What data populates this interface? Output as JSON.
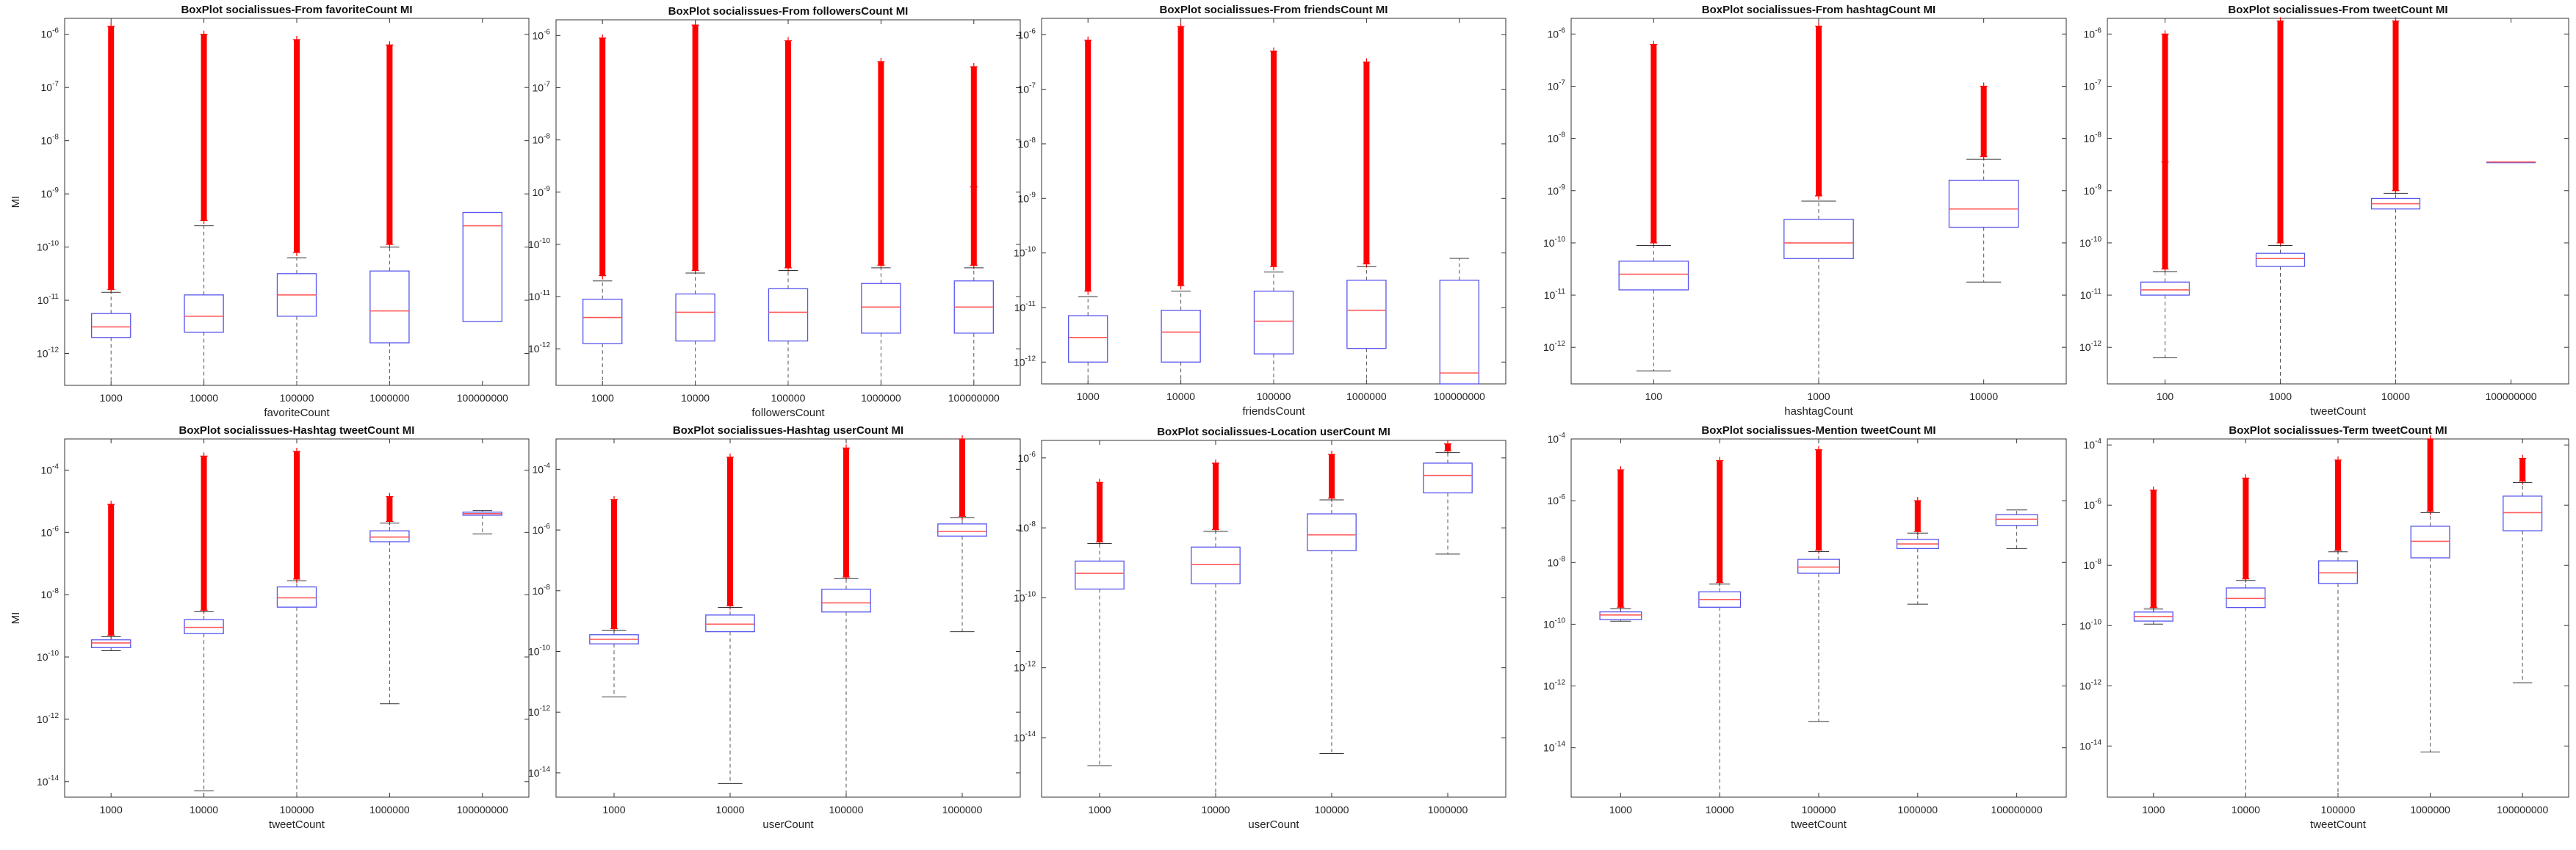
{
  "figure": {
    "chart_data": [
      {
        "type": "boxplot",
        "title": "BoxPlot socialissues-From favoriteCount MI",
        "xlabel": "favoriteCount",
        "ylabel": "MI",
        "yscale": "log",
        "ylim_exp": [
          -12.6,
          -5.7
        ],
        "ytick_exp": [
          -12,
          -11,
          -10,
          -9,
          -8,
          -7,
          -6
        ],
        "categories": [
          "1000",
          "10000",
          "100000",
          "1000000",
          "100000000"
        ],
        "boxes": [
          {
            "wmin": -12.6,
            "q1": -11.7,
            "med": -11.5,
            "q3": -11.25,
            "wmax": -10.85,
            "out": [
              -10.8,
              -5.85
            ]
          },
          {
            "wmin": -12.6,
            "q1": -11.6,
            "med": -11.3,
            "q3": -10.9,
            "wmax": -9.6,
            "out": [
              -9.5,
              -6.0
            ]
          },
          {
            "wmin": -12.6,
            "q1": -11.3,
            "med": -10.9,
            "q3": -10.5,
            "wmax": -10.2,
            "out": [
              -10.1,
              -6.1
            ]
          },
          {
            "wmin": -12.6,
            "q1": -11.8,
            "med": -11.2,
            "q3": -10.45,
            "wmax": -10.0,
            "out": [
              -9.95,
              -6.2
            ]
          },
          {
            "wmin": -11.4,
            "q1": -11.4,
            "med": -9.6,
            "q3": -9.35,
            "wmax": -9.35,
            "out": []
          }
        ]
      },
      {
        "type": "boxplot",
        "title": "BoxPlot socialissues-From followersCount MI",
        "xlabel": "followersCount",
        "ylabel": "",
        "yscale": "log",
        "ylim_exp": [
          -12.7,
          -5.7
        ],
        "ytick_exp": [
          -12,
          -11,
          -10,
          -9,
          -8,
          -7,
          -6
        ],
        "categories": [
          "1000",
          "10000",
          "100000",
          "1000000",
          "100000000"
        ],
        "boxes": [
          {
            "wmin": -12.7,
            "q1": -11.9,
            "med": -11.4,
            "q3": -11.05,
            "wmax": -10.7,
            "out": [
              -10.6,
              -6.05
            ]
          },
          {
            "wmin": -12.7,
            "q1": -11.85,
            "med": -11.3,
            "q3": -10.95,
            "wmax": -10.55,
            "out": [
              -10.5,
              -5.8
            ]
          },
          {
            "wmin": -12.7,
            "q1": -11.85,
            "med": -11.3,
            "q3": -10.85,
            "wmax": -10.5,
            "out": [
              -10.45,
              -6.1
            ]
          },
          {
            "wmin": -12.7,
            "q1": -11.7,
            "med": -11.2,
            "q3": -10.75,
            "wmax": -10.45,
            "out": [
              -10.4,
              -6.5
            ]
          },
          {
            "wmin": -12.7,
            "q1": -11.7,
            "med": -11.2,
            "q3": -10.7,
            "wmax": -10.45,
            "out": [
              -10.4,
              -8.9,
              -6.6
            ]
          }
        ]
      },
      {
        "type": "boxplot",
        "title": "BoxPlot socialissues-From friendsCount MI",
        "xlabel": "friendsCount",
        "ylabel": "",
        "yscale": "log",
        "ylim_exp": [
          -12.4,
          -5.7
        ],
        "ytick_exp": [
          -12,
          -11,
          -10,
          -9,
          -8,
          -7,
          -6
        ],
        "categories": [
          "1000",
          "10000",
          "100000",
          "1000000",
          "100000000"
        ],
        "boxes": [
          {
            "wmin": -12.4,
            "q1": -12.0,
            "med": -11.55,
            "q3": -11.15,
            "wmax": -10.8,
            "out": [
              -10.7,
              -6.1
            ]
          },
          {
            "wmin": -12.4,
            "q1": -12.0,
            "med": -11.45,
            "q3": -11.05,
            "wmax": -10.7,
            "out": [
              -10.6,
              -5.85
            ]
          },
          {
            "wmin": -12.4,
            "q1": -11.85,
            "med": -11.25,
            "q3": -10.7,
            "wmax": -10.35,
            "out": [
              -10.25,
              -6.3
            ]
          },
          {
            "wmin": -12.4,
            "q1": -11.75,
            "med": -11.05,
            "q3": -10.5,
            "wmax": -10.25,
            "out": [
              -10.2,
              -6.5
            ]
          },
          {
            "wmin": -12.4,
            "q1": -12.4,
            "med": -12.2,
            "q3": -10.5,
            "wmax": -10.1,
            "out": []
          }
        ]
      },
      {
        "type": "boxplot",
        "title": "BoxPlot socialissues-From hashtagCount MI",
        "xlabel": "hashtagCount",
        "ylabel": "",
        "yscale": "log",
        "ylim_exp": [
          -12.7,
          -5.7
        ],
        "ytick_exp": [
          -12,
          -11,
          -10,
          -9,
          -8,
          -7,
          -6
        ],
        "categories": [
          "100",
          "1000",
          "10000"
        ],
        "boxes": [
          {
            "wmin": -12.45,
            "q1": -10.9,
            "med": -10.6,
            "q3": -10.35,
            "wmax": -10.05,
            "out": [
              -10.0,
              -6.2
            ]
          },
          {
            "wmin": -12.7,
            "q1": -10.3,
            "med": -10.0,
            "q3": -9.55,
            "wmax": -9.2,
            "out": [
              -9.1,
              -5.85
            ]
          },
          {
            "wmin": -10.75,
            "q1": -9.7,
            "med": -9.35,
            "q3": -8.8,
            "wmax": -8.4,
            "out": [
              -8.35,
              -7.0
            ]
          }
        ]
      },
      {
        "type": "boxplot",
        "title": "BoxPlot socialissues-From tweetCount MI",
        "xlabel": "tweetCount",
        "ylabel": "",
        "yscale": "log",
        "ylim_exp": [
          -12.7,
          -5.7
        ],
        "ytick_exp": [
          -12,
          -11,
          -10,
          -9,
          -8,
          -7,
          -6
        ],
        "categories": [
          "100",
          "1000",
          "10000",
          "100000000"
        ],
        "boxes": [
          {
            "wmin": -12.2,
            "q1": -11.0,
            "med": -10.9,
            "q3": -10.75,
            "wmax": -10.55,
            "out": [
              -10.5,
              -8.45,
              -6.0
            ]
          },
          {
            "wmin": -12.7,
            "q1": -10.45,
            "med": -10.3,
            "q3": -10.2,
            "wmax": -10.05,
            "out": [
              -10.0,
              -5.75
            ]
          },
          {
            "wmin": -12.7,
            "q1": -9.35,
            "med": -9.25,
            "q3": -9.15,
            "wmax": -9.05,
            "out": [
              -9.0,
              -5.75
            ]
          },
          {
            "wmin": -8.45,
            "q1": -8.45,
            "med": -8.45,
            "q3": -8.45,
            "wmax": -8.45,
            "out": []
          }
        ]
      },
      {
        "type": "boxplot",
        "title": "BoxPlot socialissues-Hashtag tweetCount MI",
        "xlabel": "tweetCount",
        "ylabel": "MI",
        "yscale": "log",
        "ylim_exp": [
          -14.5,
          -3.0
        ],
        "ytick_exp": [
          -14,
          -12,
          -10,
          -8,
          -6,
          -4
        ],
        "categories": [
          "1000",
          "10000",
          "100000",
          "1000000",
          "100000000"
        ],
        "boxes": [
          {
            "wmin": -9.8,
            "q1": -9.7,
            "med": -9.55,
            "q3": -9.45,
            "wmax": -9.35,
            "out": [
              -9.3,
              -5.1
            ]
          },
          {
            "wmin": -14.3,
            "q1": -9.25,
            "med": -9.05,
            "q3": -8.8,
            "wmax": -8.55,
            "out": [
              -8.5,
              -3.55
            ]
          },
          {
            "wmin": -14.5,
            "q1": -8.4,
            "med": -8.1,
            "q3": -7.75,
            "wmax": -7.55,
            "out": [
              -7.5,
              -3.4
            ]
          },
          {
            "wmin": -11.5,
            "q1": -6.3,
            "med": -6.15,
            "q3": -5.95,
            "wmax": -5.7,
            "out": [
              -5.65,
              -4.85
            ]
          },
          {
            "wmin": -6.05,
            "q1": -5.45,
            "med": -5.4,
            "q3": -5.35,
            "wmax": -5.3,
            "out": []
          }
        ]
      },
      {
        "type": "boxplot",
        "title": "BoxPlot socialissues-Hashtag userCount MI",
        "xlabel": "userCount",
        "ylabel": "",
        "yscale": "log",
        "ylim_exp": [
          -14.8,
          -3.0
        ],
        "ytick_exp": [
          -14,
          -12,
          -10,
          -8,
          -6,
          -4
        ],
        "categories": [
          "1000",
          "10000",
          "100000",
          "1000000"
        ],
        "boxes": [
          {
            "wmin": -11.5,
            "q1": -9.75,
            "med": -9.6,
            "q3": -9.45,
            "wmax": -9.3,
            "out": [
              -9.25,
              -5.0
            ]
          },
          {
            "wmin": -14.35,
            "q1": -9.35,
            "med": -9.1,
            "q3": -8.8,
            "wmax": -8.55,
            "out": [
              -8.5,
              -3.6
            ]
          },
          {
            "wmin": -14.8,
            "q1": -8.7,
            "med": -8.4,
            "q3": -7.95,
            "wmax": -7.6,
            "out": [
              -7.55,
              -3.3
            ]
          },
          {
            "wmin": -9.35,
            "q1": -6.2,
            "med": -6.05,
            "q3": -5.8,
            "wmax": -5.6,
            "out": [
              -5.55,
              -3.0
            ]
          }
        ]
      },
      {
        "type": "boxplot",
        "title": "BoxPlot socialissues-Location userCount MI",
        "xlabel": "userCount",
        "ylabel": "",
        "yscale": "log",
        "ylim_exp": [
          -15.7,
          -5.5
        ],
        "ytick_exp": [
          -14,
          -12,
          -10,
          -8,
          -6
        ],
        "categories": [
          "1000",
          "10000",
          "100000",
          "1000000"
        ],
        "boxes": [
          {
            "wmin": -14.8,
            "q1": -9.75,
            "med": -9.3,
            "q3": -8.95,
            "wmax": -8.45,
            "out": [
              -8.4,
              -6.7
            ]
          },
          {
            "wmin": -15.7,
            "q1": -9.6,
            "med": -9.05,
            "q3": -8.55,
            "wmax": -8.1,
            "out": [
              -8.05,
              -6.15
            ]
          },
          {
            "wmin": -14.45,
            "q1": -8.65,
            "med": -8.2,
            "q3": -7.6,
            "wmax": -7.2,
            "out": [
              -7.15,
              -5.9
            ]
          },
          {
            "wmin": -8.75,
            "q1": -7.0,
            "med": -6.5,
            "q3": -6.15,
            "wmax": -5.85,
            "out": [
              -5.8,
              -5.6
            ]
          }
        ]
      },
      {
        "type": "boxplot",
        "title": "BoxPlot socialissues-Mention tweetCount MI",
        "xlabel": "tweetCount",
        "ylabel": "",
        "yscale": "log",
        "ylim_exp": [
          -15.6,
          -4.0
        ],
        "ytick_exp": [
          -14,
          -12,
          -10,
          -8,
          -6,
          -4
        ],
        "categories": [
          "1000",
          "10000",
          "100000",
          "1000000",
          "100000000"
        ],
        "boxes": [
          {
            "wmin": -9.9,
            "q1": -9.85,
            "med": -9.7,
            "q3": -9.6,
            "wmax": -9.5,
            "out": [
              -9.45,
              -5.0
            ]
          },
          {
            "wmin": -15.6,
            "q1": -9.45,
            "med": -9.2,
            "q3": -8.95,
            "wmax": -8.7,
            "out": [
              -8.65,
              -4.7
            ]
          },
          {
            "wmin": -13.15,
            "q1": -8.35,
            "med": -8.15,
            "q3": -7.9,
            "wmax": -7.65,
            "out": [
              -7.6,
              -4.35
            ]
          },
          {
            "wmin": -9.35,
            "q1": -7.55,
            "med": -7.4,
            "q3": -7.25,
            "wmax": -7.05,
            "out": [
              -7.0,
              -6.0
            ]
          },
          {
            "wmin": -7.55,
            "q1": -6.8,
            "med": -6.6,
            "q3": -6.45,
            "wmax": -6.3,
            "out": []
          }
        ]
      },
      {
        "type": "boxplot",
        "title": "BoxPlot socialissues-Term tweetCount MI",
        "xlabel": "tweetCount",
        "ylabel": "",
        "yscale": "log",
        "ylim_exp": [
          -15.7,
          -3.8
        ],
        "ytick_exp": [
          -14,
          -12,
          -10,
          -8,
          -6,
          -4
        ],
        "categories": [
          "1000",
          "10000",
          "100000",
          "1000000",
          "100000000"
        ],
        "boxes": [
          {
            "wmin": -9.95,
            "q1": -9.85,
            "med": -9.7,
            "q3": -9.55,
            "wmax": -9.45,
            "out": [
              -9.4,
              -5.5
            ]
          },
          {
            "wmin": -15.7,
            "q1": -9.4,
            "med": -9.1,
            "q3": -8.75,
            "wmax": -8.5,
            "out": [
              -8.45,
              -5.1
            ]
          },
          {
            "wmin": -15.7,
            "q1": -8.6,
            "med": -8.25,
            "q3": -7.85,
            "wmax": -7.55,
            "out": [
              -7.5,
              -4.5
            ]
          },
          {
            "wmin": -14.2,
            "q1": -7.75,
            "med": -7.2,
            "q3": -6.7,
            "wmax": -6.25,
            "out": [
              -6.2,
              -3.8
            ]
          },
          {
            "wmin": -11.9,
            "q1": -6.85,
            "med": -6.25,
            "q3": -5.7,
            "wmax": -5.25,
            "out": [
              -5.2,
              -4.45
            ]
          }
        ]
      }
    ],
    "colors": {
      "box": "#5555ee",
      "median": "#ff5a5a",
      "outlier": "#ff0000",
      "whisker": "#555555",
      "axes": "#333333"
    }
  }
}
